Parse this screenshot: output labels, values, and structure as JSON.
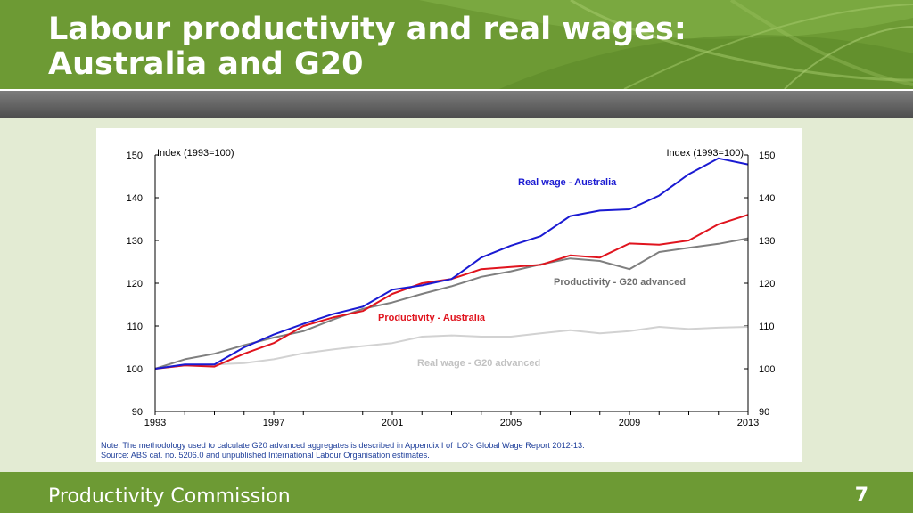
{
  "slide": {
    "title_line1": "Labour productivity and real wages:",
    "title_line2": "Australia and G20",
    "footer_org": "Productivity Commission",
    "page_number": "7"
  },
  "chart_data": {
    "type": "line",
    "left_axis_label": "Index (1993=100)",
    "right_axis_label": "Index (1993=100)",
    "ylim": [
      90,
      150
    ],
    "yticks": [
      90,
      100,
      110,
      120,
      130,
      140,
      150
    ],
    "xlim": [
      1993,
      2013
    ],
    "xticks": [
      1993,
      1997,
      2001,
      2005,
      2009,
      2013
    ],
    "x": [
      1993,
      1994,
      1995,
      1996,
      1997,
      1998,
      1999,
      2000,
      2001,
      2002,
      2003,
      2004,
      2005,
      2006,
      2007,
      2008,
      2009,
      2010,
      2011,
      2012,
      2013
    ],
    "series": [
      {
        "name": "Real wage - Australia",
        "color": "#1a1ad2",
        "label_color": "#1a1ad2",
        "values": [
          100,
          101,
          101,
          105,
          108,
          110.5,
          112.8,
          114.5,
          118.5,
          119.5,
          121,
          126,
          128.8,
          131,
          135.7,
          137,
          137.3,
          140.5,
          145.5,
          149.2,
          147.8
        ]
      },
      {
        "name": "Productivity - Australia",
        "color": "#e0141e",
        "label_color": "#e0141e",
        "values": [
          100,
          100.8,
          100.5,
          103.5,
          106,
          110,
          112,
          113.5,
          117.5,
          120,
          121,
          123.3,
          123.8,
          124.3,
          126.5,
          126,
          129.3,
          129,
          130,
          133.8,
          136
        ]
      },
      {
        "name": "Productivity - G20 advanced",
        "color": "#7f7f7f",
        "label_color": "#6e6e6e",
        "values": [
          100,
          102.2,
          103.5,
          105.5,
          107.3,
          108.8,
          111.5,
          114,
          115.5,
          117.5,
          119.3,
          121.5,
          122.8,
          124.4,
          125.8,
          125.2,
          123.3,
          127.3,
          128.3,
          129.2,
          130.5
        ]
      },
      {
        "name": "Real wage - G20 advanced",
        "color": "#d2d2d2",
        "label_color": "#c2c2c2",
        "values": [
          100,
          100.8,
          101,
          101.3,
          102.2,
          103.6,
          104.5,
          105.3,
          106,
          107.5,
          107.8,
          107.5,
          107.5,
          108.3,
          109,
          108.3,
          108.8,
          109.8,
          109.3,
          109.6,
          109.8
        ]
      }
    ],
    "note_line1": "Note: The methodology used to calculate G20 advanced aggregates is described in Appendix I of ILO's Global Wage Report 2012-13.",
    "note_line2": "Source: ABS cat. no. 5206.0 and unpublished International Labour Organisation estimates."
  }
}
